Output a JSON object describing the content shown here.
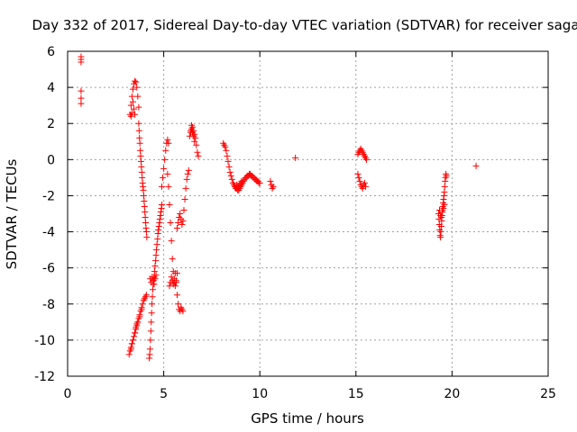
{
  "chart_data": {
    "type": "scatter",
    "title": "Day 332 of 2017, Sidereal Day-to-day VTEC variation (SDTVAR) for receiver saga",
    "xlabel": "GPS time / hours",
    "ylabel": "SDTVAR / TECUs",
    "xlim": [
      0,
      25
    ],
    "ylim": [
      -12,
      6
    ],
    "xticks": [
      0,
      5,
      10,
      15,
      20,
      25
    ],
    "xtick_labels": [
      "0",
      "5",
      "10",
      "15",
      "20",
      "25"
    ],
    "yticks": [
      6,
      4,
      2,
      0,
      -2,
      -4,
      -6,
      -8,
      -10,
      -12
    ],
    "ytick_labels": [
      "6",
      "4",
      "2",
      "0",
      "-2",
      "-4",
      "-6",
      "-8",
      "-10",
      "-12"
    ],
    "grid": true,
    "marker": "plus",
    "color": "#ff0000",
    "segments": [
      {
        "x": [
          0.7,
          0.7,
          0.7
        ],
        "y": [
          5.7,
          5.55,
          5.4
        ]
      },
      {
        "x": [
          0.7,
          0.7,
          0.7
        ],
        "y": [
          3.8,
          3.4,
          3.1
        ]
      },
      {
        "x": [
          3.25,
          3.3,
          3.35,
          3.4,
          3.45,
          3.5,
          3.55,
          3.6,
          3.65,
          3.7
        ],
        "y": [
          2.5,
          3.0,
          3.5,
          3.9,
          4.2,
          4.35,
          4.3,
          4.0,
          3.5,
          2.9
        ]
      },
      {
        "x": [
          3.3,
          3.35,
          3.4,
          3.45,
          3.5
        ],
        "y": [
          2.4,
          2.6,
          3.2,
          2.8,
          2.5
        ]
      },
      {
        "x": [
          3.7,
          3.72,
          3.74,
          3.76,
          3.78,
          3.8,
          3.82,
          3.84,
          3.86,
          3.88,
          3.9,
          3.92,
          3.94,
          3.96,
          3.98,
          4.0,
          4.02,
          4.04,
          4.06,
          4.08,
          4.1,
          4.12
        ],
        "y": [
          2.0,
          1.6,
          1.2,
          0.9,
          0.5,
          0.2,
          -0.1,
          -0.4,
          -0.7,
          -1.0,
          -1.3,
          -1.5,
          -1.7,
          -2.0,
          -2.3,
          -2.6,
          -2.9,
          -3.2,
          -3.5,
          -3.8,
          -4.0,
          -4.3
        ]
      },
      {
        "x": [
          3.2,
          3.25,
          3.3,
          3.35,
          3.4,
          3.45,
          3.5,
          3.55,
          3.6,
          3.65,
          3.7,
          3.75,
          3.8,
          3.85,
          3.9,
          3.95,
          4.0,
          4.05,
          4.1
        ],
        "y": [
          -10.8,
          -10.6,
          -10.4,
          -10.2,
          -10.0,
          -9.8,
          -9.6,
          -9.4,
          -9.2,
          -9.0,
          -8.8,
          -8.6,
          -8.4,
          -8.2,
          -8.0,
          -7.8,
          -7.7,
          -7.6,
          -7.5
        ]
      },
      {
        "x": [
          3.3,
          3.35,
          3.4,
          3.5,
          3.55,
          3.6,
          3.65,
          3.75,
          3.85
        ],
        "y": [
          -10.5,
          -10.2,
          -10.0,
          -9.6,
          -9.3,
          -9.1,
          -9.0,
          -8.7,
          -8.3
        ]
      },
      {
        "x": [
          4.25,
          4.27,
          4.29,
          4.31,
          4.33,
          4.35,
          4.37,
          4.39,
          4.41,
          4.43,
          4.45,
          4.47,
          4.5,
          4.52,
          4.55,
          4.58,
          4.6,
          4.62,
          4.65,
          4.68,
          4.7,
          4.72,
          4.75,
          4.78,
          4.8,
          4.83,
          4.85,
          4.88,
          4.9
        ],
        "y": [
          -11.0,
          -10.8,
          -10.5,
          -10.0,
          -9.5,
          -9.0,
          -8.5,
          -8.0,
          -7.6,
          -7.2,
          -6.9,
          -6.7,
          -6.5,
          -6.2,
          -5.9,
          -5.6,
          -5.3,
          -5.0,
          -4.7,
          -4.4,
          -4.1,
          -3.9,
          -3.7,
          -3.5,
          -3.3,
          -3.1,
          -2.9,
          -2.7,
          -2.5
        ]
      },
      {
        "x": [
          4.3,
          4.35,
          4.4,
          4.45,
          4.5,
          4.55,
          4.6
        ],
        "y": [
          -6.6,
          -6.8,
          -6.5,
          -6.7,
          -6.9,
          -6.6,
          -6.4
        ]
      },
      {
        "x": [
          4.9,
          4.95,
          5.0,
          5.05,
          5.1,
          5.15,
          5.2,
          5.25
        ],
        "y": [
          -1.5,
          -1.0,
          -0.5,
          0.0,
          0.5,
          0.9,
          1.1,
          0.9
        ]
      },
      {
        "x": [
          5.2,
          5.25,
          5.3,
          5.35,
          5.4,
          5.45,
          5.5,
          5.55,
          5.6,
          5.65,
          5.7
        ],
        "y": [
          -0.8,
          -1.5,
          -2.5,
          -3.5,
          -4.5,
          -5.5,
          -6.2,
          -6.8,
          -7.0,
          -6.7,
          -6.3
        ]
      },
      {
        "x": [
          5.3,
          5.35,
          5.4,
          5.45,
          5.5,
          5.55,
          5.6,
          5.65,
          5.7,
          5.75,
          5.8,
          5.85,
          5.9,
          5.95,
          6.0
        ],
        "y": [
          -7.0,
          -6.8,
          -6.5,
          -6.7,
          -6.9,
          -6.6,
          -6.3,
          -6.8,
          -7.5,
          -8.0,
          -8.3,
          -8.4,
          -8.2,
          -8.3,
          -8.4
        ]
      },
      {
        "x": [
          5.7,
          5.75,
          5.8,
          5.85,
          5.9,
          5.95,
          6.0,
          6.05,
          6.1,
          6.15,
          6.2,
          6.25,
          6.3
        ],
        "y": [
          -3.8,
          -3.5,
          -3.2,
          -3.0,
          -3.3,
          -3.6,
          -3.4,
          -2.8,
          -2.2,
          -1.6,
          -1.1,
          -0.8,
          -0.6
        ]
      },
      {
        "x": [
          6.35,
          6.4,
          6.45,
          6.5,
          6.55,
          6.6,
          6.65,
          6.7,
          6.75,
          6.8
        ],
        "y": [
          1.3,
          1.6,
          1.9,
          1.8,
          1.6,
          1.4,
          1.2,
          0.8,
          0.4,
          0.2
        ]
      },
      {
        "x": [
          6.4,
          6.45,
          6.5,
          6.55,
          6.6
        ],
        "y": [
          1.5,
          1.7,
          1.5,
          1.3,
          1.0
        ]
      },
      {
        "x": [
          8.1,
          8.15,
          8.2,
          8.25,
          8.3,
          8.35,
          8.4,
          8.45,
          8.5,
          8.55,
          8.6,
          8.65,
          8.7,
          8.75,
          8.8,
          8.85,
          8.9,
          8.95,
          9.0,
          9.05,
          9.1,
          9.15,
          9.2,
          9.25,
          9.3,
          9.35,
          9.4,
          9.45,
          9.5,
          9.55,
          9.6,
          9.65,
          9.7,
          9.75,
          9.8,
          9.85,
          9.9,
          9.95,
          10.0
        ],
        "y": [
          0.9,
          0.8,
          0.7,
          0.5,
          0.2,
          -0.1,
          -0.4,
          -0.7,
          -0.9,
          -1.1,
          -1.3,
          -1.4,
          -1.5,
          -1.6,
          -1.6,
          -1.7,
          -1.7,
          -1.6,
          -1.5,
          -1.4,
          -1.3,
          -1.2,
          -1.1,
          -1.0,
          -1.0,
          -0.9,
          -0.9,
          -0.8,
          -0.8,
          -0.9,
          -0.9,
          -1.0,
          -1.0,
          -1.1,
          -1.1,
          -1.2,
          -1.2,
          -1.3,
          -1.3
        ]
      },
      {
        "x": [
          8.8,
          8.85,
          8.9,
          8.95,
          9.0,
          9.05
        ],
        "y": [
          -1.4,
          -1.5,
          -1.5,
          -1.4,
          -1.3,
          -1.2
        ]
      },
      {
        "x": [
          10.55,
          10.6,
          10.65,
          10.7
        ],
        "y": [
          -1.2,
          -1.4,
          -1.6,
          -1.5
        ]
      },
      {
        "x": [
          11.85
        ],
        "y": [
          0.1
        ]
      },
      {
        "x": [
          15.1,
          15.15,
          15.2,
          15.25,
          15.3,
          15.35,
          15.4,
          15.45,
          15.5,
          15.55
        ],
        "y": [
          0.3,
          0.4,
          0.5,
          0.6,
          0.5,
          0.4,
          0.3,
          0.2,
          0.1,
          0.0
        ]
      },
      {
        "x": [
          15.1,
          15.15,
          15.2,
          15.25,
          15.3,
          15.35,
          15.4,
          15.45,
          15.5
        ],
        "y": [
          -0.8,
          -1.0,
          -1.2,
          -1.4,
          -1.5,
          -1.6,
          -1.4,
          -1.3,
          -1.5
        ]
      },
      {
        "x": [
          19.3,
          19.32,
          19.34,
          19.36,
          19.38,
          19.4,
          19.42,
          19.44,
          19.46,
          19.48,
          19.5,
          19.52,
          19.54,
          19.56,
          19.58,
          19.6,
          19.62,
          19.64,
          19.66,
          19.68,
          19.7
        ],
        "y": [
          -3.0,
          -3.3,
          -3.6,
          -3.9,
          -4.2,
          -4.3,
          -4.0,
          -3.7,
          -3.4,
          -3.1,
          -2.8,
          -2.6,
          -2.4,
          -2.2,
          -2.0,
          -1.8,
          -1.5,
          -1.2,
          -1.0,
          -0.8,
          -0.9
        ]
      },
      {
        "x": [
          19.35,
          19.4,
          19.45,
          19.5,
          19.55,
          19.6
        ],
        "y": [
          -2.8,
          -3.1,
          -3.2,
          -2.9,
          -2.7,
          -2.5
        ]
      },
      {
        "x": [
          21.25
        ],
        "y": [
          -0.35
        ]
      }
    ]
  }
}
